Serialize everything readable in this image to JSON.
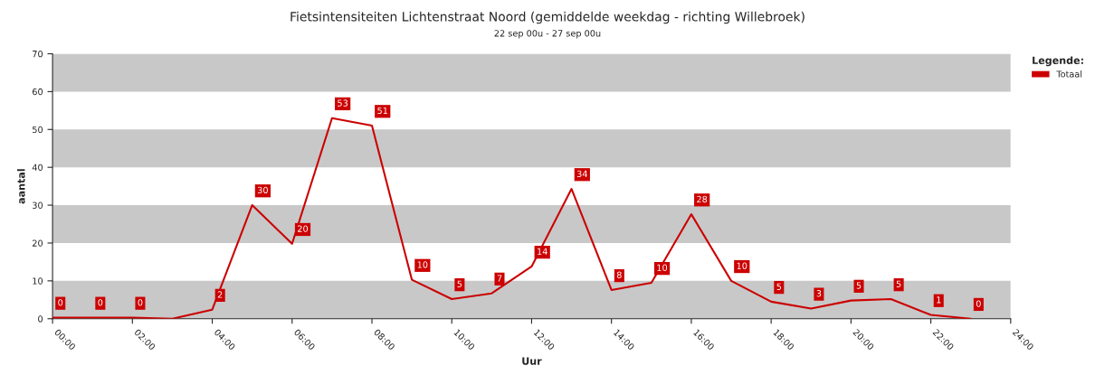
{
  "chart_data": {
    "type": "line",
    "title": "Fietsintensiteiten Lichtenstraat Noord (gemiddelde weekdag - richting Willebroek)",
    "subtitle": "22 sep 00u - 27 sep 00u",
    "xlabel": "Uur",
    "ylabel": "aantal",
    "legend_title": "Legende:",
    "x": [
      0,
      1,
      2,
      3,
      4,
      5,
      6,
      7,
      8,
      9,
      10,
      11,
      12,
      13,
      14,
      15,
      16,
      17,
      18,
      19,
      20,
      21,
      22,
      23
    ],
    "series": [
      {
        "name": "Totaal",
        "color": "#cc0000",
        "values": [
          0.3,
          0.3,
          0.3,
          0,
          2.4,
          30,
          19.8,
          53,
          51,
          10.3,
          5.2,
          6.7,
          13.8,
          34.3,
          7.6,
          9.5,
          27.6,
          10,
          4.5,
          2.7,
          4.8,
          5.2,
          1,
          0
        ],
        "value_labels": [
          "0",
          "0",
          "0",
          null,
          "2",
          "30",
          "20",
          "53",
          "51",
          "10",
          "5",
          "7",
          "14",
          "34",
          "8",
          "10",
          "28",
          "10",
          "5",
          "3",
          "5",
          "5",
          "1",
          "0"
        ]
      }
    ],
    "xlim": [
      0,
      24
    ],
    "xticks": [
      {
        "value": 0,
        "label": "00:00"
      },
      {
        "value": 2,
        "label": "02:00"
      },
      {
        "value": 4,
        "label": "04:00"
      },
      {
        "value": 6,
        "label": "06:00"
      },
      {
        "value": 8,
        "label": "08:00"
      },
      {
        "value": 10,
        "label": "10:00"
      },
      {
        "value": 12,
        "label": "12:00"
      },
      {
        "value": 14,
        "label": "14:00"
      },
      {
        "value": 16,
        "label": "16:00"
      },
      {
        "value": 18,
        "label": "18:00"
      },
      {
        "value": 20,
        "label": "20:00"
      },
      {
        "value": 22,
        "label": "22:00"
      },
      {
        "value": 24,
        "label": "24:00"
      }
    ],
    "ylim": [
      0,
      70
    ],
    "yticks": [
      0,
      10,
      20,
      30,
      40,
      50,
      60,
      70
    ],
    "bands": [
      {
        "axis": "y",
        "from": 0,
        "to": 10,
        "color": "#c8c8c8"
      },
      {
        "axis": "y",
        "from": 20,
        "to": 30,
        "color": "#c8c8c8"
      },
      {
        "axis": "y",
        "from": 40,
        "to": 50,
        "color": "#c8c8c8"
      },
      {
        "axis": "y",
        "from": 60,
        "to": 70,
        "color": "#c8c8c8"
      }
    ],
    "legend": "top right",
    "marker": "none",
    "line_style": "solid"
  }
}
